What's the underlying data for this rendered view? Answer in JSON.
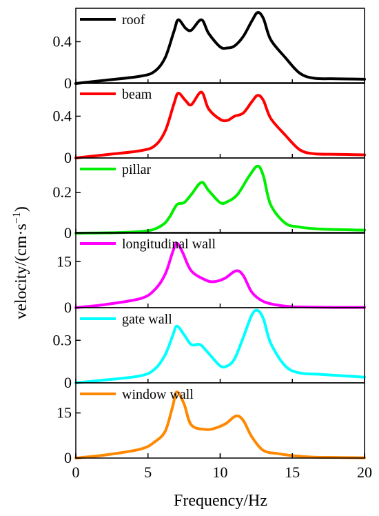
{
  "chart_data": {
    "type": "line",
    "ylabel": "velocity/(cm·s",
    "ylabel_sup": "−1",
    "ylabel_close": ")",
    "xlabel": "Frequency/Hz",
    "xlim": [
      0,
      20
    ],
    "xticks": [
      0,
      5,
      10,
      15,
      20
    ],
    "xtick_labels": [
      "0",
      "5",
      "10",
      "15",
      "20"
    ],
    "legend_placement": "top-left",
    "panels": [
      {
        "name": "roof",
        "color": "#000000",
        "ylim": [
          0,
          0.72
        ],
        "yticks": [
          0,
          0.4
        ],
        "ytick_labels": [
          "0",
          "0.4"
        ],
        "x": [
          0,
          2,
          4.5,
          5.5,
          6.2,
          6.8,
          7.1,
          7.6,
          8,
          8.7,
          9.2,
          10,
          10.5,
          11,
          11.6,
          12.2,
          12.6,
          13,
          13.5,
          14.5,
          15.5,
          16.5,
          18,
          20
        ],
        "y": [
          0,
          0.03,
          0.07,
          0.12,
          0.25,
          0.5,
          0.61,
          0.53,
          0.51,
          0.61,
          0.48,
          0.35,
          0.34,
          0.36,
          0.45,
          0.6,
          0.68,
          0.62,
          0.42,
          0.25,
          0.1,
          0.05,
          0.045,
          0.04
        ]
      },
      {
        "name": "beam",
        "color": "#ff0000",
        "ylim": [
          0,
          0.72
        ],
        "yticks": [
          0,
          0.4
        ],
        "ytick_labels": [
          "0",
          "0.4"
        ],
        "x": [
          0,
          2,
          4.5,
          5.5,
          6.2,
          6.8,
          7.1,
          7.6,
          8,
          8.7,
          9.2,
          10,
          10.5,
          11,
          11.6,
          12.2,
          12.6,
          13,
          13.5,
          14.5,
          15.5,
          16.5,
          18,
          20
        ],
        "y": [
          0,
          0.03,
          0.07,
          0.12,
          0.26,
          0.52,
          0.62,
          0.55,
          0.51,
          0.63,
          0.47,
          0.37,
          0.36,
          0.4,
          0.43,
          0.54,
          0.6,
          0.55,
          0.38,
          0.22,
          0.08,
          0.04,
          0.035,
          0.03
        ]
      },
      {
        "name": "pillar",
        "color": "#00ee00",
        "ylim": [
          0,
          0.37
        ],
        "yticks": [
          0,
          0.2
        ],
        "ytick_labels": [
          "0",
          "0.2"
        ],
        "x": [
          0,
          3,
          5,
          6,
          6.5,
          7,
          7.5,
          8,
          8.7,
          9.2,
          10,
          10.5,
          11.2,
          12,
          12.6,
          13,
          13.5,
          14.5,
          15.5,
          17,
          20
        ],
        "y": [
          0,
          0.003,
          0.012,
          0.04,
          0.08,
          0.14,
          0.15,
          0.19,
          0.25,
          0.21,
          0.15,
          0.155,
          0.19,
          0.28,
          0.33,
          0.28,
          0.14,
          0.05,
          0.03,
          0.02,
          0.015
        ]
      },
      {
        "name": "longitudinal wall",
        "color": "#ff00ff",
        "ylim": [
          0,
          24.5
        ],
        "yticks": [
          0,
          15
        ],
        "ytick_labels": [
          "0",
          "15"
        ],
        "x": [
          0,
          2,
          4.5,
          5.5,
          6.2,
          6.7,
          7,
          7.4,
          8,
          9,
          9.6,
          10.3,
          11.1,
          11.6,
          12.2,
          13,
          14,
          15,
          16,
          18,
          20
        ],
        "y": [
          0,
          1,
          3,
          6,
          11,
          18,
          21,
          18,
          12,
          9,
          8.5,
          9.5,
          12,
          10.5,
          5,
          2,
          0.8,
          0.3,
          0.2,
          0.1,
          0.1
        ]
      },
      {
        "name": "gate wall",
        "color": "#00ffff",
        "ylim": [
          0,
          0.53
        ],
        "yticks": [
          0,
          0.3
        ],
        "ytick_labels": [
          "0",
          "0.3"
        ],
        "x": [
          0,
          2,
          4.5,
          5.5,
          6.2,
          6.7,
          7,
          7.5,
          8,
          8.6,
          9.1,
          10,
          10.5,
          11,
          11.6,
          12.2,
          12.6,
          13,
          13.5,
          14.5,
          15.5,
          17,
          20
        ],
        "y": [
          0,
          0.02,
          0.05,
          0.1,
          0.2,
          0.33,
          0.4,
          0.34,
          0.27,
          0.27,
          0.22,
          0.12,
          0.12,
          0.17,
          0.32,
          0.48,
          0.51,
          0.45,
          0.28,
          0.12,
          0.07,
          0.06,
          0.04
        ]
      },
      {
        "name": "window wall",
        "color": "#ff8800",
        "ylim": [
          0,
          25
        ],
        "yticks": [
          0,
          15
        ],
        "ytick_labels": [
          "0",
          "15"
        ],
        "x": [
          0,
          2,
          4.5,
          5.5,
          6.2,
          6.7,
          7,
          7.5,
          8,
          9,
          9.7,
          10.4,
          11.1,
          11.6,
          12.2,
          13,
          14,
          15,
          16.5,
          18,
          20
        ],
        "y": [
          0,
          1,
          3,
          5.5,
          9,
          17,
          22,
          18,
          11,
          9.5,
          10,
          11.5,
          14,
          12.5,
          7,
          2.5,
          1.5,
          0.8,
          0.3,
          0.2,
          0.1
        ]
      }
    ]
  }
}
